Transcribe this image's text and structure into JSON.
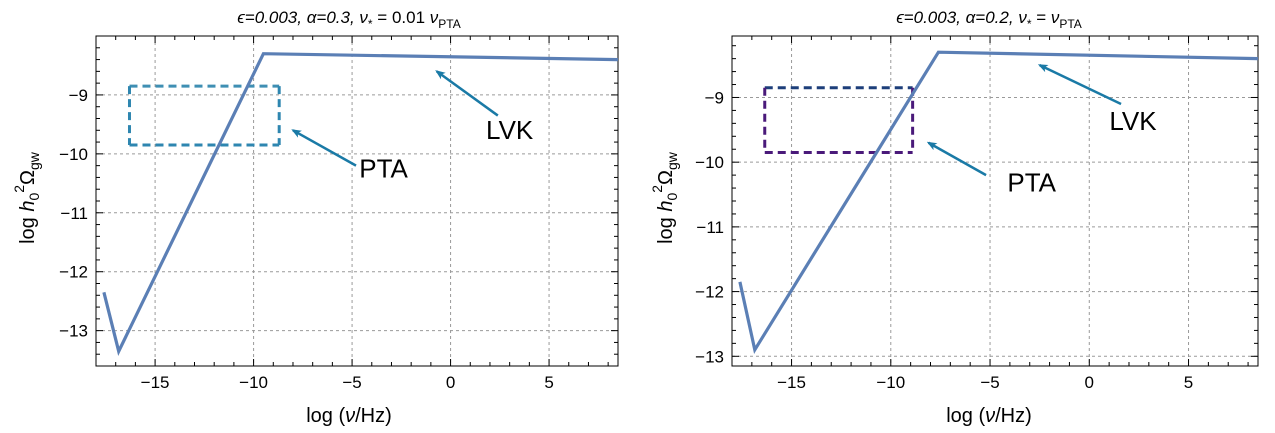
{
  "chart_data": [
    {
      "type": "line",
      "title": "ϵ=0.003, α=0.3, ν* = 0.01 νPTA",
      "xlabel": "log (ν/Hz)",
      "ylabel": "log h0²Ωgw",
      "xlim": [
        -18,
        8.5
      ],
      "ylim": [
        -13.6,
        -8.0
      ],
      "xticks": [
        -15,
        -10,
        -5,
        0,
        5
      ],
      "yticks": [
        -13,
        -12,
        -11,
        -10,
        -9
      ],
      "grid": true,
      "series": [
        {
          "points": [
            [
              -17.6,
              -12.35
            ],
            [
              -16.85,
              -13.35
            ],
            [
              -9.5,
              -8.3
            ],
            [
              8.5,
              -8.4
            ]
          ],
          "color": "#5b7fb5"
        }
      ],
      "pta_box": {
        "x": [
          -16.3,
          -8.7
        ],
        "y": [
          -9.85,
          -8.85
        ],
        "color_top": "#3f8fb3",
        "color_bottom": "#2e86b0"
      },
      "annotations": [
        {
          "text": "LVK",
          "label_at": [
            3.0,
            -9.75
          ],
          "arrow_from": [
            2.4,
            -9.35
          ],
          "arrow_to": [
            -0.7,
            -8.6
          ],
          "color": "#1a7aa6"
        },
        {
          "text": "PTA",
          "label_at": [
            -3.4,
            -10.4
          ],
          "arrow_from": [
            -4.8,
            -10.2
          ],
          "arrow_to": [
            -8.0,
            -9.6
          ],
          "color": "#1a7aa6"
        }
      ]
    },
    {
      "type": "line",
      "title": "ϵ=0.003, α=0.2, ν* = νPTA",
      "xlabel": "log (ν/Hz)",
      "ylabel": "log h0²Ωgw",
      "xlim": [
        -18,
        8.5
      ],
      "ylim": [
        -13.15,
        -8.05
      ],
      "xticks": [
        -15,
        -10,
        -5,
        0,
        5
      ],
      "yticks": [
        -13,
        -12,
        -11,
        -10,
        -9
      ],
      "grid": true,
      "series": [
        {
          "points": [
            [
              -17.6,
              -11.85
            ],
            [
              -16.85,
              -12.9
            ],
            [
              -7.6,
              -8.3
            ],
            [
              8.5,
              -8.4
            ]
          ],
          "color": "#5b7fb5"
        }
      ],
      "pta_box": {
        "x": [
          -16.35,
          -8.9
        ],
        "y": [
          -9.85,
          -8.85
        ],
        "color_top": "#1d3f7a",
        "color_bottom": "#4a1a7a"
      },
      "annotations": [
        {
          "text": "LVK",
          "label_at": [
            2.2,
            -9.5
          ],
          "arrow_from": [
            1.6,
            -9.1
          ],
          "arrow_to": [
            -2.5,
            -8.5
          ],
          "color": "#1a7aa6"
        },
        {
          "text": "PTA",
          "label_at": [
            -2.9,
            -10.45
          ],
          "arrow_from": [
            -5.2,
            -10.2
          ],
          "arrow_to": [
            -8.1,
            -9.7
          ],
          "color": "#1a7aa6"
        }
      ]
    }
  ],
  "panels": [
    {
      "title": {
        "eps": "ϵ=0.003, ",
        "alpha": "α=0.3, ",
        "nu": "ν",
        "star": "*",
        "eq": " = 0.01 ",
        "nu2": "ν",
        "sub": "PTA"
      },
      "xlabel": {
        "pre": "log (",
        "nu": "ν",
        "post": "/Hz)"
      },
      "ylabel": {
        "log": "log ",
        "h": "h",
        "zero": "0",
        "two": "2",
        "omega": "Ω",
        "gw": "gw"
      }
    },
    {
      "title": {
        "eps": "ϵ=0.003, ",
        "alpha": "α=0.2, ",
        "nu": "ν",
        "star": "*",
        "eq": " = ",
        "nu2": "ν",
        "sub": "PTA"
      },
      "xlabel": {
        "pre": "log (",
        "nu": "ν",
        "post": "/Hz)"
      },
      "ylabel": {
        "log": "log ",
        "h": "h",
        "zero": "0",
        "two": "2",
        "omega": "Ω",
        "gw": "gw"
      }
    }
  ]
}
